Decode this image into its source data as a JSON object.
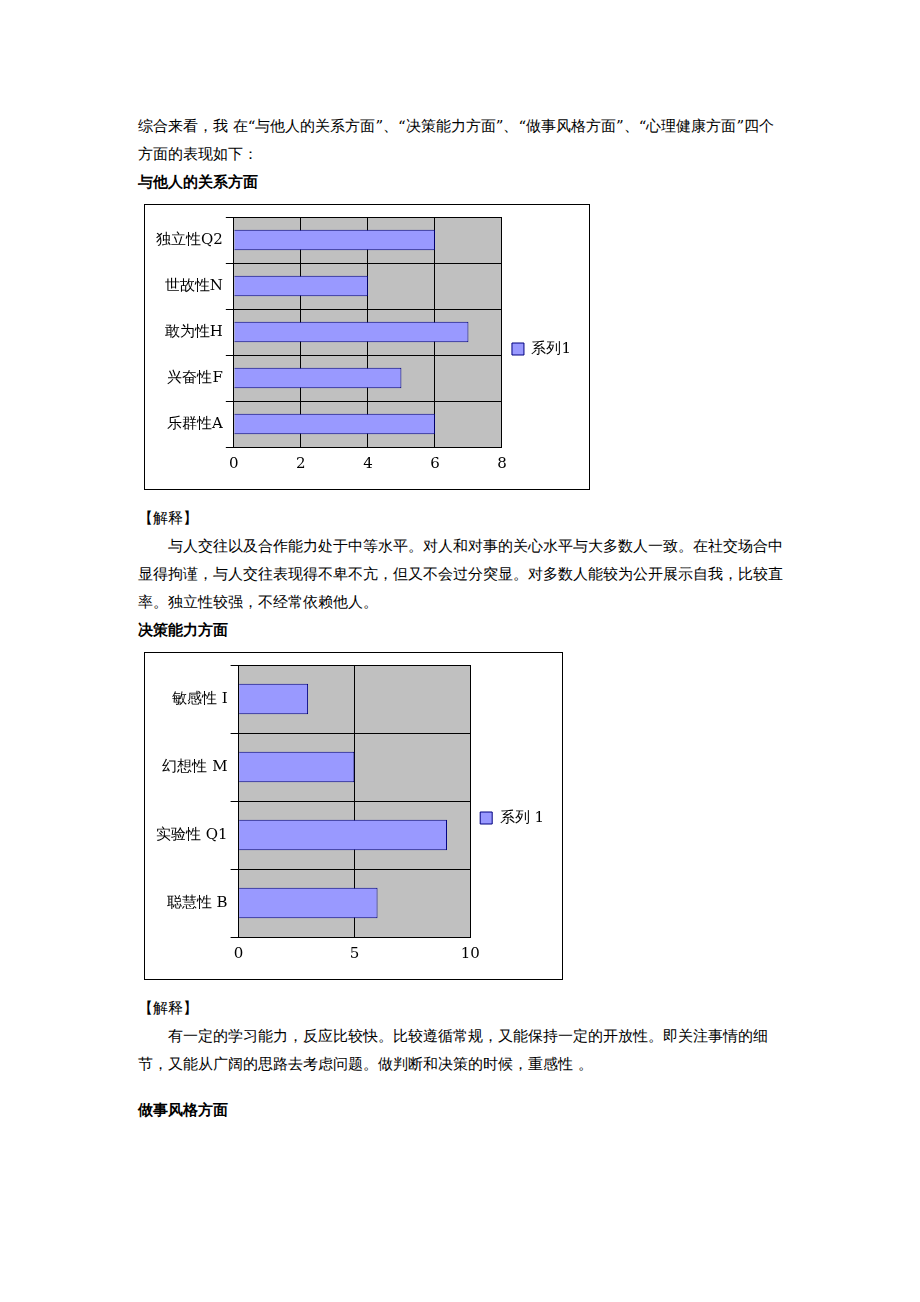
{
  "document": {
    "intro": "综合来看，我 在“与他人的关系方面”、“决策能力方面”、“做事风格方面”、“心理健康方面”四个方面的表现如下：",
    "sections": [
      {
        "heading": "与他人的关系方面",
        "explanation_label": "【解释】",
        "explanation": "与人交往以及合作能力处于中等水平。对人和对事的关心水平与大多数人一致。在社交场合中显得拘谨，与人交往表现得不卑不亢，但又不会过分突显。对多数人能较为公开展示自我，比较直率。独立性较强，不经常依赖他人。"
      },
      {
        "heading": "决策能力方面",
        "explanation_label": "【解释】",
        "explanation": "有一定的学习能力，反应比较快。比较遵循常规，又能保持一定的开放性。即关注事情的细节，又能从广阔的思路去考虑问题。做判断和决策的时候，重感性 。"
      },
      {
        "heading": "做事风格方面"
      }
    ]
  },
  "chart_data": [
    {
      "type": "bar",
      "orientation": "horizontal",
      "categories": [
        "独立性Q2",
        "世故性N",
        "敢为性H",
        "兴奋性F",
        "乐群性A"
      ],
      "series": [
        {
          "name": "系列1",
          "color": "#9999ff",
          "values": [
            6,
            4,
            7,
            5,
            6
          ]
        }
      ],
      "xlim": [
        0,
        8
      ],
      "xticks": [
        0,
        2,
        4,
        6,
        8
      ],
      "grid": true,
      "legend": "right"
    },
    {
      "type": "bar",
      "orientation": "horizontal",
      "categories": [
        "敏感性 I",
        "幻想性 M",
        "实验性 Q1",
        "聪慧性 B"
      ],
      "series": [
        {
          "name": "系列 1",
          "color": "#9999ff",
          "values": [
            3,
            5,
            9,
            6
          ]
        }
      ],
      "xlim": [
        0,
        10
      ],
      "xticks": [
        0,
        5,
        10
      ],
      "grid": true,
      "legend": "right"
    }
  ]
}
